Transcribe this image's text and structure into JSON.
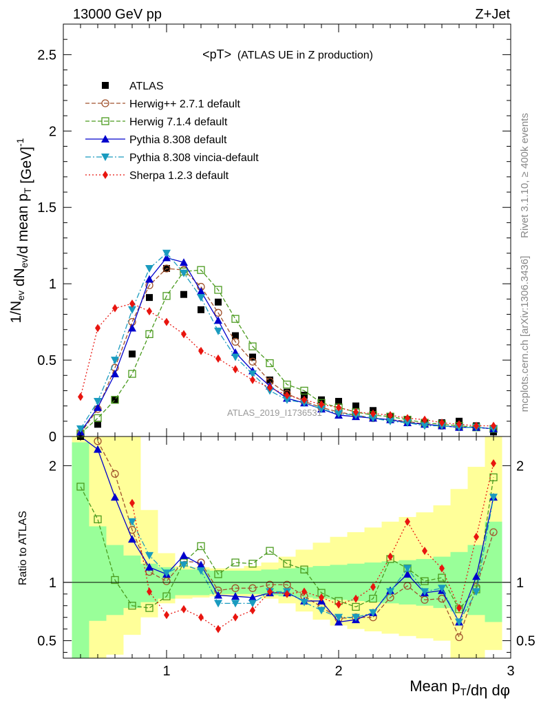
{
  "header": {
    "left": "13000 GeV pp",
    "right": "Z+Jet"
  },
  "side_labels": {
    "rivet": "Rivet 3.1.10, ≥ 400k events",
    "mcplots": "mcplots.cern.ch [arXiv:1306.3436]"
  },
  "watermark": "ATLAS_2019_I1736531",
  "chart_data": {
    "type": "line",
    "title_main": "<pT>",
    "title_sub": "(ATLAS UE in Z production)",
    "ylabel_main": "1/N_ev dN_ev/d mean p_T [GeV]^-1",
    "ylabel_ratio": "Ratio to ATLAS",
    "xlabel": "Mean p_T/dη dφ",
    "xlim": [
      0.4,
      3.0
    ],
    "ylim_main": [
      0,
      2.7
    ],
    "ylim_ratio": [
      0.35,
      2.25
    ],
    "xticks": [
      1,
      2,
      3
    ],
    "yticks_main": [
      "0",
      "0.5",
      "1",
      "1.5",
      "2",
      "2.5"
    ],
    "yticks_ratio": [
      "0.5",
      "1",
      "2"
    ],
    "x": [
      0.5,
      0.6,
      0.7,
      0.8,
      0.9,
      1.0,
      1.1,
      1.2,
      1.3,
      1.4,
      1.5,
      1.6,
      1.7,
      1.8,
      1.9,
      2.0,
      2.1,
      2.2,
      2.3,
      2.4,
      2.5,
      2.6,
      2.7,
      2.8,
      2.9
    ],
    "series": [
      {
        "name": "ATLAS",
        "color": "#000000",
        "marker": "square",
        "line": "none",
        "values": [
          0.0,
          0.08,
          0.24,
          0.54,
          0.91,
          1.1,
          0.93,
          0.83,
          0.88,
          0.66,
          0.52,
          0.37,
          0.29,
          0.27,
          0.24,
          0.23,
          0.2,
          0.17,
          0.13,
          0.11,
          0.09,
          0.09,
          0.1,
          0.07,
          0.03
        ]
      },
      {
        "name": "Herwig++ 2.7.1 default",
        "color": "#a0522d",
        "marker": "circle-open",
        "line": "6,3",
        "values": [
          0.02,
          0.18,
          0.45,
          0.75,
          0.99,
          1.1,
          1.09,
          0.98,
          0.81,
          0.62,
          0.49,
          0.36,
          0.28,
          0.23,
          0.19,
          0.16,
          0.14,
          0.12,
          0.11,
          0.1,
          0.08,
          0.07,
          0.06,
          0.06,
          0.05
        ]
      },
      {
        "name": "Herwig 7.1.4 default",
        "color": "#4a9a1e",
        "marker": "square-open",
        "line": "6,3",
        "values": [
          0.02,
          0.12,
          0.24,
          0.41,
          0.67,
          0.92,
          1.08,
          1.09,
          0.96,
          0.77,
          0.59,
          0.48,
          0.34,
          0.3,
          0.22,
          0.19,
          0.16,
          0.14,
          0.13,
          0.11,
          0.09,
          0.08,
          0.07,
          0.06,
          0.05
        ]
      },
      {
        "name": "Pythia 8.308 default",
        "color": "#0000cc",
        "marker": "triangle-up",
        "line": "",
        "values": [
          0.03,
          0.19,
          0.41,
          0.71,
          1.03,
          1.17,
          1.14,
          0.95,
          0.76,
          0.55,
          0.43,
          0.33,
          0.25,
          0.22,
          0.18,
          0.14,
          0.13,
          0.12,
          0.11,
          0.09,
          0.08,
          0.07,
          0.06,
          0.06,
          0.05
        ]
      },
      {
        "name": "Pythia 8.308 vincia-default",
        "color": "#1a9bbf",
        "marker": "triangle-down",
        "line": "8,3,2,3",
        "values": [
          0.05,
          0.23,
          0.5,
          0.83,
          1.1,
          1.2,
          1.07,
          0.91,
          0.69,
          0.52,
          0.41,
          0.3,
          0.24,
          0.22,
          0.18,
          0.15,
          0.14,
          0.12,
          0.1,
          0.09,
          0.07,
          0.07,
          0.06,
          0.06,
          0.05
        ]
      },
      {
        "name": "Sherpa 1.2.3 default",
        "color": "#e8150f",
        "marker": "diamond",
        "line": "2,3",
        "values": [
          0.26,
          0.71,
          0.84,
          0.87,
          0.82,
          0.75,
          0.67,
          0.56,
          0.51,
          0.44,
          0.37,
          0.32,
          0.27,
          0.24,
          0.21,
          0.19,
          0.16,
          0.15,
          0.14,
          0.12,
          0.11,
          0.09,
          0.08,
          0.07,
          0.07
        ]
      }
    ],
    "ratio_series": [
      {
        "name": "Herwig++ 2.7.1 default",
        "values": [
          null,
          2.21,
          1.93,
          1.45,
          1.09,
          1.01,
          1.18,
          1.17,
          0.93,
          0.95,
          0.95,
          0.98,
          0.98,
          0.88,
          0.79,
          0.69,
          0.7,
          0.7,
          0.87,
          0.97,
          0.85,
          0.86,
          0.53,
          0.96,
          1.43
        ]
      },
      {
        "name": "Herwig 7.1.4 default",
        "values": [
          1.82,
          1.54,
          1.02,
          0.8,
          0.78,
          0.88,
          1.17,
          1.31,
          1.07,
          1.17,
          1.16,
          1.27,
          1.16,
          1.11,
          0.91,
          0.84,
          0.79,
          0.86,
          1.2,
          1.12,
          1.01,
          1.04,
          0.77,
          0.94,
          1.9
        ]
      },
      {
        "name": "Pythia 8.308 default",
        "values": [
          2.25,
          2.14,
          1.73,
          1.37,
          1.13,
          1.07,
          1.23,
          1.15,
          0.89,
          0.88,
          0.87,
          0.91,
          0.91,
          0.84,
          0.84,
          0.66,
          0.68,
          0.74,
          0.93,
          1.07,
          0.91,
          0.93,
          0.66,
          1.05,
          1.73
        ]
      },
      {
        "name": "Pythia 8.308 vincia-default",
        "values": [
          null,
          null,
          null,
          1.52,
          1.23,
          1.08,
          1.15,
          1.1,
          0.82,
          0.82,
          0.82,
          0.92,
          0.92,
          0.83,
          0.76,
          0.7,
          0.7,
          0.74,
          0.92,
          1.12,
          0.92,
          0.95,
          0.66,
          0.92,
          1.73
        ]
      },
      {
        "name": "Sherpa 1.2.3 default",
        "values": [
          null,
          null,
          null,
          1.68,
          0.92,
          0.72,
          0.77,
          0.7,
          0.6,
          0.7,
          0.76,
          0.92,
          0.9,
          0.92,
          0.87,
          0.81,
          0.86,
          0.96,
          1.22,
          1.52,
          1.27,
          1.12,
          0.78,
          1.39,
          2.02
        ]
      }
    ],
    "bands": {
      "x_edges": [
        0.45,
        0.55,
        0.65,
        0.75,
        0.85,
        0.95,
        1.05,
        1.15,
        1.25,
        1.35,
        1.45,
        1.55,
        1.65,
        1.75,
        1.85,
        1.95,
        2.05,
        2.15,
        2.25,
        2.35,
        2.45,
        2.55,
        2.65,
        2.75,
        2.85,
        2.95
      ],
      "green_lo": [
        0.35,
        0.67,
        0.72,
        0.78,
        0.83,
        0.86,
        0.89,
        0.89,
        0.9,
        0.9,
        0.9,
        0.89,
        0.88,
        0.87,
        0.86,
        0.85,
        0.84,
        0.83,
        0.82,
        0.81,
        0.8,
        0.78,
        0.75,
        0.72,
        0.66
      ],
      "green_hi": [
        2.2,
        1.48,
        1.32,
        1.23,
        1.16,
        1.13,
        1.11,
        1.11,
        1.1,
        1.1,
        1.1,
        1.11,
        1.12,
        1.13,
        1.14,
        1.15,
        1.16,
        1.17,
        1.18,
        1.19,
        1.2,
        1.22,
        1.26,
        1.32,
        1.52
      ],
      "yellow_lo": [
        0.35,
        0.35,
        0.38,
        0.55,
        0.7,
        0.82,
        0.86,
        0.87,
        0.88,
        0.88,
        0.88,
        0.86,
        0.82,
        0.75,
        0.68,
        0.63,
        0.6,
        0.58,
        0.56,
        0.54,
        0.52,
        0.5,
        0.35,
        0.35,
        0.42
      ],
      "yellow_hi": [
        2.25,
        2.25,
        2.25,
        2.25,
        1.62,
        1.25,
        1.14,
        1.13,
        1.12,
        1.12,
        1.14,
        1.17,
        1.22,
        1.28,
        1.34,
        1.39,
        1.43,
        1.47,
        1.52,
        1.56,
        1.6,
        1.66,
        1.8,
        1.99,
        2.25
      ]
    }
  }
}
